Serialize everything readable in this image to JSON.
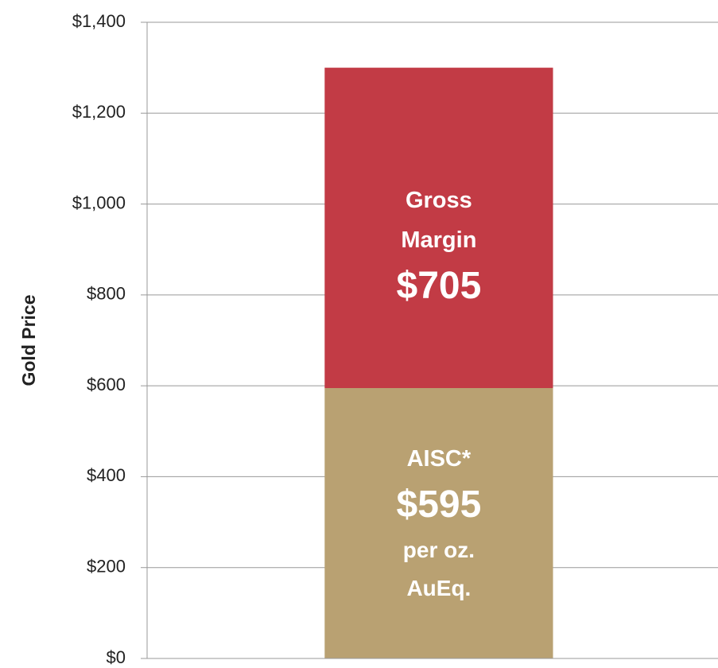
{
  "chart_data": {
    "type": "stacked_bar",
    "y_label": "Gold Price",
    "categories": [
      null
    ],
    "series": [
      {
        "name": "AISC*",
        "color": "#b9a172",
        "values": [
          595
        ],
        "value_labels": [
          "$595"
        ],
        "note": "per oz. AuEq."
      },
      {
        "name": "Gross Margin",
        "color": "#c23b45",
        "values": [
          705
        ],
        "value_labels": [
          "$705"
        ]
      }
    ],
    "ylim": [
      0,
      1400
    ],
    "yticks": [
      {
        "value": 0,
        "label": "$0"
      },
      {
        "value": 200,
        "label": "$200"
      },
      {
        "value": 400,
        "label": "$400"
      },
      {
        "value": 600,
        "label": "$600"
      },
      {
        "value": 800,
        "label": "$800"
      },
      {
        "value": 1000,
        "label": "$1,000"
      },
      {
        "value": 1200,
        "label": "$1,200"
      },
      {
        "value": 1400,
        "label": "$1,400"
      }
    ],
    "grid": true
  }
}
